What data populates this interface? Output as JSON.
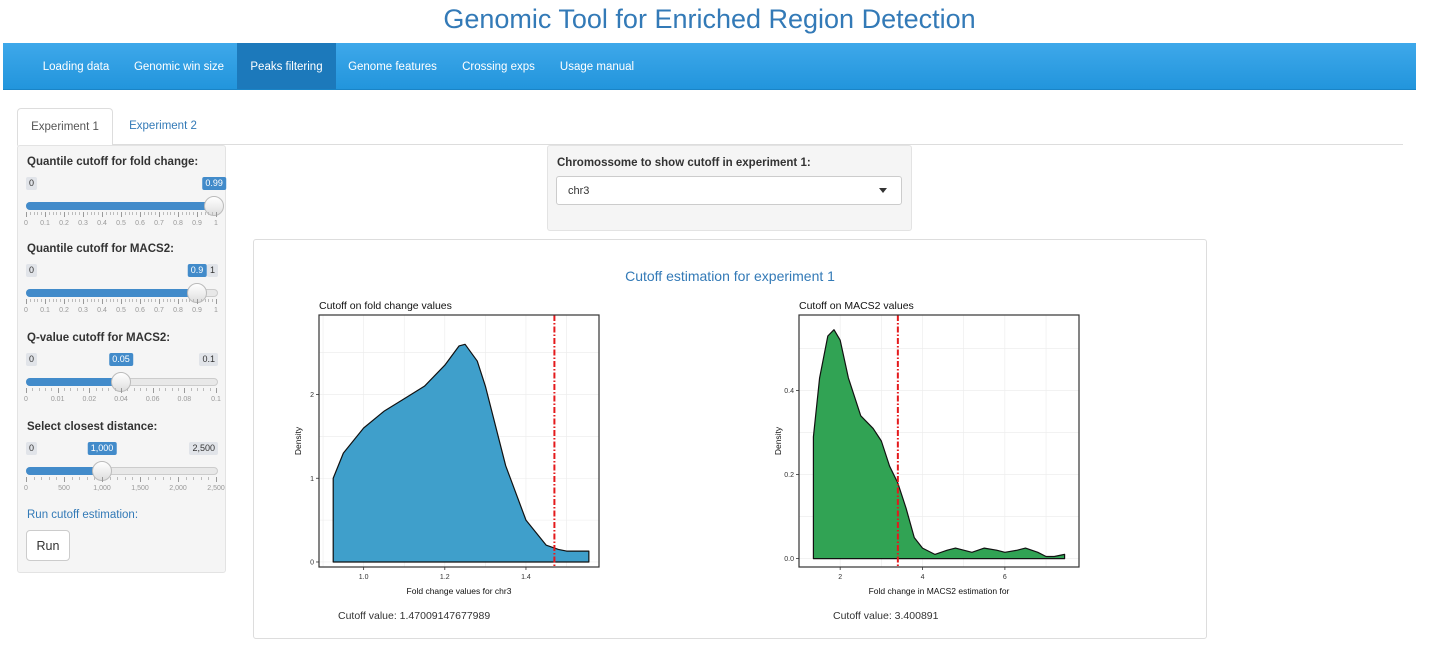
{
  "app": {
    "title": "Genomic Tool for Enriched Region Detection"
  },
  "navbar": {
    "items": [
      {
        "label": "Loading data",
        "active": false
      },
      {
        "label": "Genomic win size",
        "active": false
      },
      {
        "label": "Peaks filtering",
        "active": true
      },
      {
        "label": "Genome features",
        "active": false
      },
      {
        "label": "Crossing exps",
        "active": false
      },
      {
        "label": "Usage manual",
        "active": false
      }
    ]
  },
  "tabs": [
    {
      "label": "Experiment 1",
      "active": true
    },
    {
      "label": "Experiment 2",
      "active": false
    }
  ],
  "sidebar": {
    "sliders": [
      {
        "label": "Quantile cutoff for fold change:",
        "min": 0,
        "max": 1,
        "value": 0.99,
        "min_label": "0",
        "max_label": "1",
        "value_label": "0.99",
        "show_max_badge": false,
        "ticks": [
          "0",
          "0.1",
          "0.2",
          "0.3",
          "0.4",
          "0.5",
          "0.6",
          "0.7",
          "0.8",
          "0.9",
          "1"
        ]
      },
      {
        "label": "Quantile cutoff for MACS2:",
        "min": 0,
        "max": 1,
        "value": 0.9,
        "min_label": "0",
        "max_label": "1",
        "value_label": "0.9",
        "show_max_badge": true,
        "ticks": [
          "0",
          "0.1",
          "0.2",
          "0.3",
          "0.4",
          "0.5",
          "0.6",
          "0.7",
          "0.8",
          "0.9",
          "1"
        ]
      },
      {
        "label": "Q-value cutoff for MACS2:",
        "min": 0,
        "max": 0.1,
        "value": 0.05,
        "min_label": "0",
        "max_label": "0.1",
        "value_label": "0.05",
        "show_max_badge": true,
        "ticks": [
          "0",
          "0.01",
          "0.02",
          "0.04",
          "0.06",
          "0.08",
          "0.1"
        ]
      },
      {
        "label": "Select closest distance:",
        "min": 0,
        "max": 2500,
        "value": 1000,
        "min_label": "0",
        "max_label": "2,500",
        "value_label": "1,000",
        "show_max_badge": true,
        "ticks": [
          "0",
          "500",
          "1,000",
          "1,500",
          "2,000",
          "2,500"
        ]
      }
    ],
    "run_label": "Run cutoff estimation:",
    "run_button": "Run"
  },
  "chromosome": {
    "label": "Chromossome to show cutoff in experiment 1:",
    "value": "chr3"
  },
  "cutoff_panel": {
    "title": "Cutoff estimation for experiment 1",
    "cutoff_values": [
      "Cutoff value: 1.47009147677989",
      "Cutoff value: 3.400891"
    ]
  },
  "chart_data": [
    {
      "type": "area",
      "title": "Cutoff on fold change values",
      "xlabel": "Fold change values for chr3",
      "ylabel": "Density",
      "xlim": [
        0.89,
        1.58
      ],
      "ylim": [
        -0.06,
        2.95
      ],
      "xticks": [
        1.0,
        1.2,
        1.4
      ],
      "xtick_labels": [
        "1.0",
        "1.2",
        "1.4"
      ],
      "yticks": [
        0,
        1,
        2
      ],
      "ytick_labels": [
        "0",
        "1",
        "2"
      ],
      "grid": true,
      "fill_color": "#3f9fcb",
      "cutoff": 1.47009147677989,
      "cutoff_color": "#e41a1c",
      "x": [
        0.925,
        0.925,
        0.95,
        1.0,
        1.05,
        1.1,
        1.15,
        1.2,
        1.235,
        1.25,
        1.28,
        1.3,
        1.35,
        1.4,
        1.45,
        1.48,
        1.5,
        1.53,
        1.555,
        1.555
      ],
      "y": [
        0,
        1.0,
        1.3,
        1.6,
        1.8,
        1.95,
        2.1,
        2.35,
        2.58,
        2.6,
        2.4,
        2.1,
        1.15,
        0.5,
        0.2,
        0.15,
        0.13,
        0.13,
        0.13,
        0
      ]
    },
    {
      "type": "area",
      "title": "Cutoff on MACS2 values",
      "xlabel": "Fold change in MACS2 estimation for",
      "ylabel": "Density",
      "xlim": [
        1.0,
        7.8
      ],
      "ylim": [
        -0.02,
        0.58
      ],
      "xticks": [
        2,
        4,
        6
      ],
      "xtick_labels": [
        "2",
        "4",
        "6"
      ],
      "yticks": [
        0.0,
        0.2,
        0.4
      ],
      "ytick_labels": [
        "0.0",
        "0.2",
        "0.4"
      ],
      "grid": true,
      "fill_color": "#31a354",
      "cutoff": 3.400891,
      "cutoff_color": "#e41a1c",
      "x": [
        1.35,
        1.35,
        1.5,
        1.7,
        1.85,
        2.0,
        2.2,
        2.5,
        2.8,
        3.0,
        3.2,
        3.4,
        3.6,
        3.8,
        4.0,
        4.3,
        4.6,
        4.8,
        5.0,
        5.2,
        5.5,
        5.8,
        6.0,
        6.3,
        6.5,
        6.8,
        7.0,
        7.2,
        7.45,
        7.45
      ],
      "y": [
        0,
        0.29,
        0.43,
        0.53,
        0.545,
        0.52,
        0.43,
        0.34,
        0.31,
        0.28,
        0.22,
        0.18,
        0.12,
        0.05,
        0.025,
        0.01,
        0.02,
        0.025,
        0.02,
        0.015,
        0.025,
        0.02,
        0.015,
        0.02,
        0.025,
        0.015,
        0.005,
        0.005,
        0.01,
        0
      ]
    }
  ]
}
